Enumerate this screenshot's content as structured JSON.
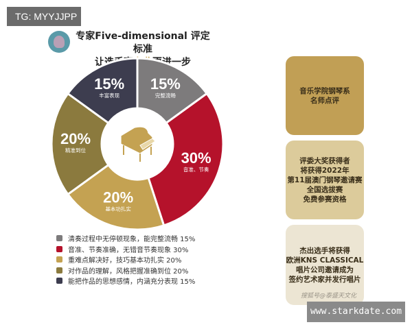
{
  "tg_label": "TG: MYYJJPP",
  "header": {
    "line1": "专家Five-dimensional 评定标准",
    "line2_pre": "让选手离",
    "line2_hl": "专业",
    "line2_post": "更进一步"
  },
  "colors": {
    "accent": "#c4a252"
  },
  "chart_data": {
    "type": "pie",
    "donut": true,
    "center_icon": "grand-piano-icon",
    "slices": [
      {
        "value": 15,
        "pct": "15%",
        "label": "完整流畅",
        "color": "#7d7b7c"
      },
      {
        "value": 30,
        "pct": "30%",
        "label": "音准、节奏",
        "color": "#b5122b"
      },
      {
        "value": 20,
        "pct": "20%",
        "label": "基本功扎实",
        "color": "#c4a252"
      },
      {
        "value": 20,
        "pct": "20%",
        "label": "精准到位",
        "color": "#8b7a3e"
      },
      {
        "value": 15,
        "pct": "15%",
        "label": "丰富表现",
        "color": "#3d3d4f"
      }
    ]
  },
  "legend": [
    {
      "text": "清奏过程中无停顿现象，能完整流畅 15%",
      "color": "#7d7b7c"
    },
    {
      "text": "音准、节奏准确，无错音节奏现象 30%",
      "color": "#b5122b"
    },
    {
      "text": "重难点解决好，技巧基本功扎实 20%",
      "color": "#c4a252"
    },
    {
      "text": "对作品的理解，风格把握准确到位 20%",
      "color": "#8b7a3e"
    },
    {
      "text": "能把作品的思想感情，内涵充分表现 15%",
      "color": "#3d3d4f"
    }
  ],
  "cards": [
    {
      "lines": [
        "音乐学院钢琴系",
        "名师点评"
      ]
    },
    {
      "lines": [
        "评委大奖获得者",
        "将获得2022年",
        "第11届澳门钢琴邀请赛",
        "全国选拔赛",
        "免费参赛资格"
      ]
    },
    {
      "lines": [
        "杰出选手将获得",
        "欧洲KNS CLASSICAL",
        "唱片公司邀请成为",
        "签约艺术家并发行唱片"
      ]
    }
  ],
  "watermark": "搜狐号@泰盛天文化",
  "site": "www.starkdate.com"
}
